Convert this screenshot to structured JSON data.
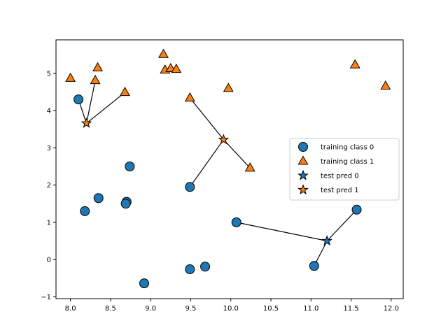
{
  "chart_data": {
    "type": "scatter",
    "title": "",
    "xlabel": "",
    "ylabel": "",
    "xlim": [
      7.82,
      12.15
    ],
    "ylim": [
      -1.05,
      5.9
    ],
    "xticks": [
      8.0,
      8.5,
      9.0,
      9.5,
      10.0,
      10.5,
      11.0,
      11.5,
      12.0
    ],
    "xtick_labels": [
      "8.0",
      "8.5",
      "9.0",
      "9.5",
      "10.0",
      "10.5",
      "11.0",
      "11.5",
      "12.0"
    ],
    "yticks": [
      -1,
      0,
      1,
      2,
      3,
      4,
      5
    ],
    "ytick_labels": [
      "−1",
      "0",
      "1",
      "2",
      "3",
      "4",
      "5"
    ],
    "grid": false,
    "legend_position": "center-right",
    "colors": {
      "class0": "#1f77b4",
      "class1": "#ff7f0e",
      "edge": "#000000"
    },
    "series": [
      {
        "name": "training class 0",
        "marker": "circle",
        "color": "#1f77b4",
        "points": [
          [
            8.1,
            4.3
          ],
          [
            8.18,
            1.3
          ],
          [
            8.35,
            1.65
          ],
          [
            8.7,
            1.55
          ],
          [
            8.69,
            1.5
          ],
          [
            8.74,
            2.5
          ],
          [
            8.92,
            -0.64
          ],
          [
            9.49,
            1.95
          ],
          [
            9.49,
            -0.26
          ],
          [
            9.68,
            -0.19
          ],
          [
            10.07,
            1.0
          ],
          [
            11.04,
            -0.17
          ],
          [
            11.57,
            1.34
          ]
        ]
      },
      {
        "name": "training class 1",
        "marker": "triangle",
        "color": "#ff7f0e",
        "points": [
          [
            8.0,
            4.87
          ],
          [
            8.31,
            4.81
          ],
          [
            8.34,
            5.15
          ],
          [
            8.68,
            4.49
          ],
          [
            9.16,
            5.51
          ],
          [
            9.18,
            5.09
          ],
          [
            9.25,
            5.13
          ],
          [
            9.32,
            5.11
          ],
          [
            9.49,
            4.34
          ],
          [
            9.97,
            4.6
          ],
          [
            10.24,
            2.46
          ],
          [
            11.55,
            5.23
          ],
          [
            11.93,
            4.66
          ]
        ]
      },
      {
        "name": "test pred 0",
        "marker": "star",
        "color": "#1f77b4",
        "points": [
          [
            11.2,
            0.5
          ]
        ]
      },
      {
        "name": "test pred 1",
        "marker": "star",
        "color": "#ff7f0e",
        "points": [
          [
            8.2,
            3.66
          ],
          [
            9.91,
            3.22
          ]
        ]
      }
    ],
    "neighbor_lines": [
      [
        [
          8.2,
          3.66
        ],
        [
          8.1,
          4.3
        ]
      ],
      [
        [
          8.2,
          3.66
        ],
        [
          8.31,
          4.81
        ]
      ],
      [
        [
          8.2,
          3.66
        ],
        [
          8.68,
          4.49
        ]
      ],
      [
        [
          9.91,
          3.22
        ],
        [
          9.49,
          4.34
        ]
      ],
      [
        [
          9.91,
          3.22
        ],
        [
          9.49,
          1.95
        ]
      ],
      [
        [
          9.91,
          3.22
        ],
        [
          10.24,
          2.46
        ]
      ],
      [
        [
          11.2,
          0.5
        ],
        [
          10.07,
          1.0
        ]
      ],
      [
        [
          11.2,
          0.5
        ],
        [
          11.04,
          -0.17
        ]
      ],
      [
        [
          11.2,
          0.5
        ],
        [
          11.57,
          1.34
        ]
      ]
    ]
  }
}
